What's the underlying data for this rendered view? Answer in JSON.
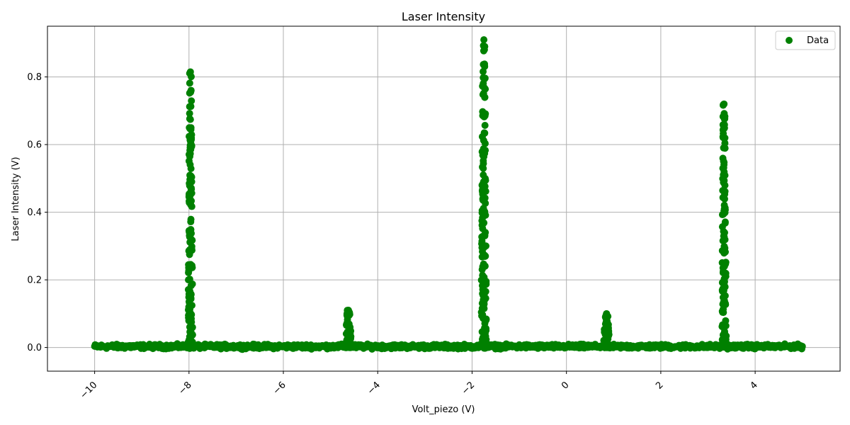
{
  "chart_data": {
    "type": "scatter",
    "title": "Laser Intensity",
    "xlabel": "Volt_piezo (V)",
    "ylabel": "Laser Intensity (V)",
    "xlim": [
      -11.0,
      5.8
    ],
    "ylim": [
      -0.07,
      0.95
    ],
    "x_ticks": [
      -10,
      -8,
      -6,
      -4,
      -2,
      0,
      2,
      4
    ],
    "x_tick_labels": [
      "−10",
      "−8",
      "−6",
      "−4",
      "−2",
      "0",
      "2",
      "4"
    ],
    "y_ticks": [
      0.0,
      0.2,
      0.4,
      0.6,
      0.8
    ],
    "y_tick_labels": [
      "0.0",
      "0.2",
      "0.4",
      "0.6",
      "0.8"
    ],
    "grid": true,
    "legend_position": "top-right",
    "color": "#008000",
    "series": [
      {
        "name": "Data",
        "baseline_x_range": [
          -10.0,
          5.0
        ],
        "peaks": [
          {
            "center": -7.97,
            "width": 0.05,
            "height": 0.815
          },
          {
            "center": -4.62,
            "width": 0.07,
            "height": 0.11
          },
          {
            "center": -1.75,
            "width": 0.06,
            "height": 0.91
          },
          {
            "center": 0.85,
            "width": 0.07,
            "height": 0.1
          },
          {
            "center": 3.34,
            "width": 0.05,
            "height": 0.72
          }
        ]
      }
    ]
  }
}
